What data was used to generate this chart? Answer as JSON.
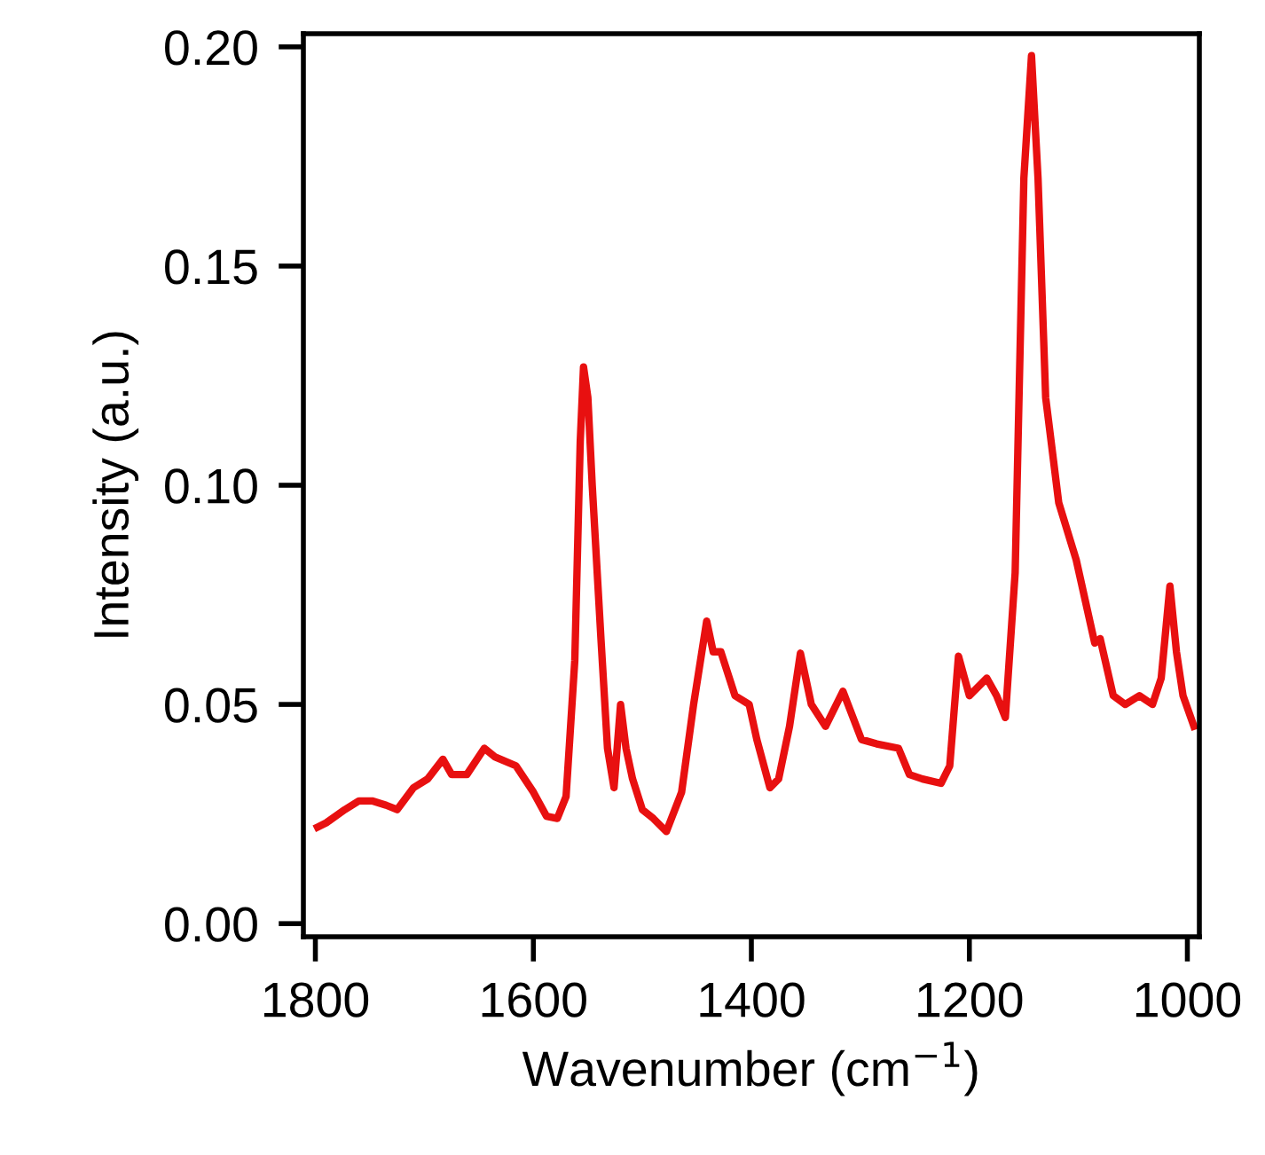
{
  "chart_data": {
    "type": "line",
    "xlabel": "Wavenumber (cm$^{−1}$)",
    "ylabel": "Intensity (a.u.)",
    "xlim": [
      1811,
      989
    ],
    "ylim": [
      -0.003,
      0.203
    ],
    "xticks": [
      1800,
      1600,
      1400,
      1200,
      1000
    ],
    "yticks": [
      {
        "value": 0,
        "label": "0.00"
      },
      {
        "value": 0.05,
        "label": "0.05"
      },
      {
        "value": 0.1,
        "label": "0.10"
      },
      {
        "value": 0.15,
        "label": "0.15"
      },
      {
        "value": 0.2,
        "label": "0.20"
      }
    ],
    "grid": false,
    "marker": "none",
    "line_style": "solid",
    "series": [
      {
        "color": "#e81010",
        "x": [
          1798,
          1790,
          1773,
          1760,
          1748,
          1735,
          1725,
          1710,
          1697,
          1683,
          1675,
          1661,
          1645,
          1635,
          1616,
          1600,
          1588,
          1578,
          1570,
          1562,
          1557,
          1554,
          1550,
          1546,
          1538,
          1532,
          1526,
          1520,
          1515,
          1509,
          1500,
          1490,
          1478,
          1464,
          1453,
          1441,
          1435,
          1428,
          1415,
          1402,
          1395,
          1383,
          1375,
          1365,
          1355,
          1345,
          1332,
          1316,
          1299,
          1285,
          1265,
          1255,
          1243,
          1226,
          1218,
          1210,
          1200,
          1184,
          1175,
          1167,
          1158,
          1150,
          1143,
          1137,
          1130,
          1118,
          1102,
          1085,
          1080,
          1068,
          1057,
          1044,
          1032,
          1024,
          1016,
          1010,
          1004,
          994
        ],
        "values": [
          0.022,
          0.023,
          0.026,
          0.028,
          0.028,
          0.027,
          0.026,
          0.031,
          0.033,
          0.0375,
          0.034,
          0.034,
          0.04,
          0.038,
          0.036,
          0.03,
          0.0245,
          0.024,
          0.029,
          0.06,
          0.11,
          0.127,
          0.12,
          0.1,
          0.065,
          0.04,
          0.031,
          0.05,
          0.04,
          0.033,
          0.026,
          0.024,
          0.021,
          0.03,
          0.05,
          0.069,
          0.062,
          0.062,
          0.052,
          0.05,
          0.042,
          0.031,
          0.033,
          0.045,
          0.0617,
          0.05,
          0.045,
          0.053,
          0.042,
          0.041,
          0.04,
          0.034,
          0.033,
          0.032,
          0.036,
          0.061,
          0.052,
          0.056,
          0.052,
          0.047,
          0.08,
          0.17,
          0.198,
          0.17,
          0.12,
          0.096,
          0.083,
          0.064,
          0.065,
          0.052,
          0.05,
          0.052,
          0.05,
          0.056,
          0.077,
          0.062,
          0.052,
          0.045
        ]
      }
    ]
  }
}
